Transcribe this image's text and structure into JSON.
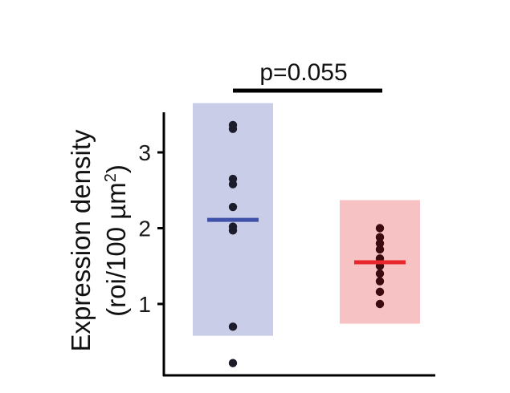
{
  "chart_data": {
    "type": "scatter",
    "ylabel_line1": "Expression density",
    "ylabel_line2_prefix": "(roi/100 µm",
    "ylabel_line2_sup": "2",
    "ylabel_line2_suffix": ")",
    "yticks": [
      "1",
      "2",
      "3"
    ],
    "ylim": [
      0,
      3.6
    ],
    "annotation": "p=0.055",
    "groups": [
      {
        "range": [
          0.58,
          3.65
        ],
        "mean": 2.11,
        "points": [
          3.36,
          3.31,
          2.65,
          2.58,
          2.28,
          2.02,
          1.97,
          0.7,
          0.22
        ],
        "band_color": "#c9cde8",
        "mean_color": "#3f51a8",
        "point_color": "#1c1c2a"
      },
      {
        "range": [
          0.74,
          2.37
        ],
        "mean": 1.55,
        "points": [
          2.0,
          1.88,
          1.8,
          1.72,
          1.6,
          1.5,
          1.4,
          1.3,
          1.16,
          1.0
        ],
        "band_color": "#f6c2c4",
        "mean_color": "#e8262c",
        "point_color": "#3b0b10"
      }
    ]
  }
}
